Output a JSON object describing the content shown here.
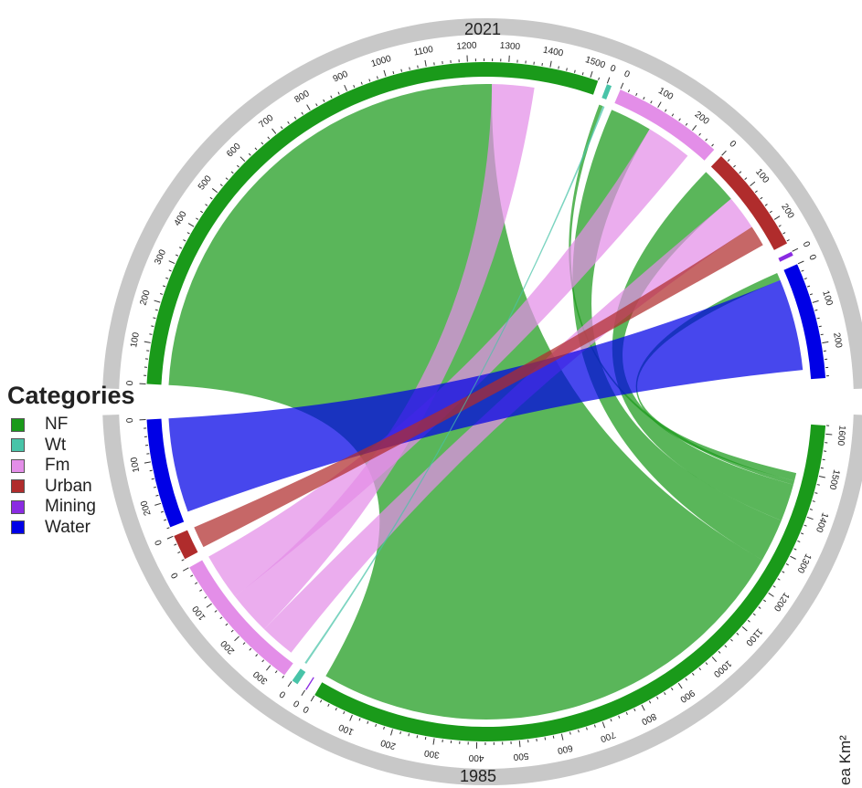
{
  "chart_data": {
    "type": "chord",
    "legend": {
      "title": "Categories",
      "items": [
        {
          "name": "NF",
          "color": "#1a9a1a"
        },
        {
          "name": "Wt",
          "color": "#48c4a8"
        },
        {
          "name": "Fm",
          "color": "#e38ee8"
        },
        {
          "name": "Urban",
          "color": "#b02c2c"
        },
        {
          "name": "Mining",
          "color": "#8a2be2"
        },
        {
          "name": "Water",
          "color": "#0000e6"
        }
      ]
    },
    "groups": {
      "top": {
        "label": "2021",
        "sectors": [
          {
            "category": "NF",
            "total": 1520
          },
          {
            "category": "Wt",
            "total": 12
          },
          {
            "category": "Fm",
            "total": 270
          },
          {
            "category": "Urban",
            "total": 265
          },
          {
            "category": "Mining",
            "total": 10
          },
          {
            "category": "Water",
            "total": 285
          }
        ]
      },
      "bottom": {
        "label": "1985",
        "sectors": [
          {
            "category": "Water",
            "total": 260
          },
          {
            "category": "Urban",
            "total": 60
          },
          {
            "category": "Fm",
            "total": 340
          },
          {
            "category": "Wt",
            "total": 15
          },
          {
            "category": "Mining",
            "total": 3
          },
          {
            "category": "NF",
            "total": 1620
          }
        ]
      }
    },
    "ticks": {
      "top": {
        "NF": [
          "0",
          "100",
          "200",
          "300",
          "400",
          "500",
          "600",
          "700",
          "800",
          "900",
          "1000",
          "1100",
          "1200",
          "1300",
          "1400",
          "1500"
        ],
        "Wt": [
          "0"
        ],
        "Fm": [
          "0",
          "100",
          "200"
        ],
        "Urban": [
          "0",
          "100",
          "200"
        ],
        "Mining": [
          "0"
        ],
        "Water": [
          "0",
          "100",
          "200"
        ]
      },
      "bottom": {
        "NF": [
          "0",
          "100",
          "200",
          "300",
          "400",
          "500",
          "600",
          "700",
          "800",
          "900",
          "1000",
          "1100",
          "1200",
          "1300",
          "1400",
          "1500",
          "1600"
        ],
        "Mining": [
          "0"
        ],
        "Wt": [
          "0"
        ],
        "Fm": [
          "0",
          "100",
          "200",
          "300"
        ],
        "Urban": [
          "0"
        ],
        "Water": [
          "0",
          "100",
          "200"
        ]
      }
    },
    "flows": [
      {
        "from": "NF",
        "to": "NF",
        "value": 1260
      },
      {
        "from": "NF",
        "to": "Fm",
        "value": 110
      },
      {
        "from": "NF",
        "to": "Urban",
        "value": 95
      },
      {
        "from": "NF",
        "to": "Wt",
        "value": 10
      },
      {
        "from": "NF",
        "to": "Water",
        "value": 20
      },
      {
        "from": "Fm",
        "to": "Fm",
        "value": 120
      },
      {
        "from": "Fm",
        "to": "NF",
        "value": 110
      },
      {
        "from": "Fm",
        "to": "Urban",
        "value": 90
      },
      {
        "from": "Water",
        "to": "Water",
        "value": 240
      },
      {
        "from": "Urban",
        "to": "Urban",
        "value": 55
      },
      {
        "from": "Wt",
        "to": "Wt",
        "value": 5
      }
    ],
    "side_label": "ea Km²"
  }
}
